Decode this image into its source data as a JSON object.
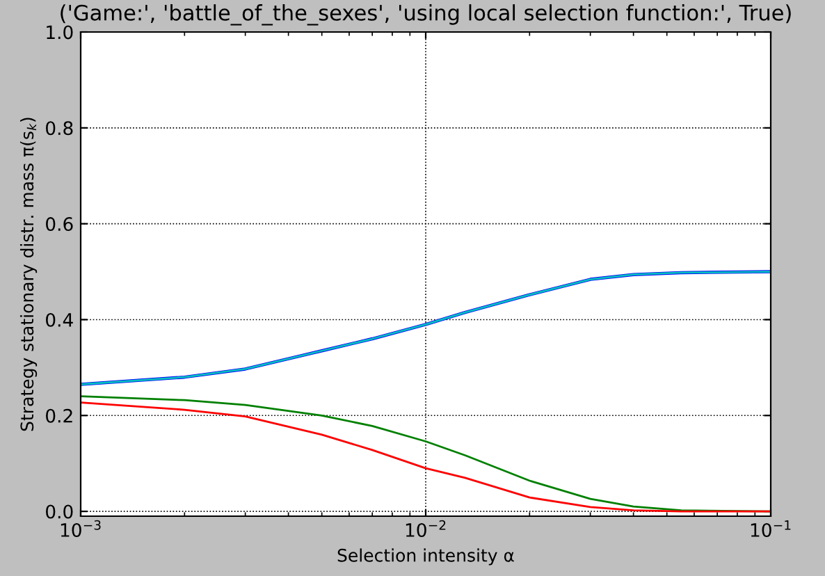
{
  "chart_data": {
    "type": "line",
    "title": "('Game:', 'battle_of_the_sexes', 'using local selection function:', True)",
    "xlabel": "Selection intensity α",
    "ylabel": "Strategy stationary distr. mass π(s$_{k}$)",
    "x": [
      0.001,
      0.002,
      0.003,
      0.005,
      0.007,
      0.01,
      0.013,
      0.02,
      0.03,
      0.04,
      0.055,
      0.1
    ],
    "series": [
      {
        "color": "#0000ff",
        "values": [
          0.265,
          0.28,
          0.297,
          0.335,
          0.36,
          0.39,
          0.415,
          0.452,
          0.484,
          0.494,
          0.498,
          0.5
        ]
      },
      {
        "color": "#008000",
        "values": [
          0.24,
          0.232,
          0.222,
          0.2,
          0.178,
          0.146,
          0.117,
          0.064,
          0.026,
          0.01,
          0.002,
          0.0
        ]
      },
      {
        "color": "#ff0000",
        "values": [
          0.227,
          0.212,
          0.198,
          0.16,
          0.128,
          0.09,
          0.07,
          0.029,
          0.009,
          0.002,
          0.0,
          0.0
        ]
      },
      {
        "color": "#00bfbf",
        "values": [
          0.265,
          0.28,
          0.297,
          0.335,
          0.36,
          0.39,
          0.415,
          0.452,
          0.484,
          0.494,
          0.498,
          0.5
        ]
      }
    ],
    "log": "x",
    "xlim": [
      0.001,
      0.1
    ],
    "xticks": [
      {
        "value": 0.001,
        "label": "10$^{−3}$"
      },
      {
        "value": 0.01,
        "label": "10$^{−2}$"
      },
      {
        "value": 0.1,
        "label": "10$^{−1}$"
      }
    ],
    "ylim": [
      -0.01,
      1.0
    ],
    "yticks": [
      {
        "value": 0.0,
        "label": "0.0"
      },
      {
        "value": 0.2,
        "label": "0.2"
      },
      {
        "value": 0.4,
        "label": "0.4"
      },
      {
        "value": 0.6,
        "label": "0.6"
      },
      {
        "value": 0.8,
        "label": "0.8"
      },
      {
        "value": 1.0,
        "label": "1.0"
      }
    ],
    "grid": true
  }
}
